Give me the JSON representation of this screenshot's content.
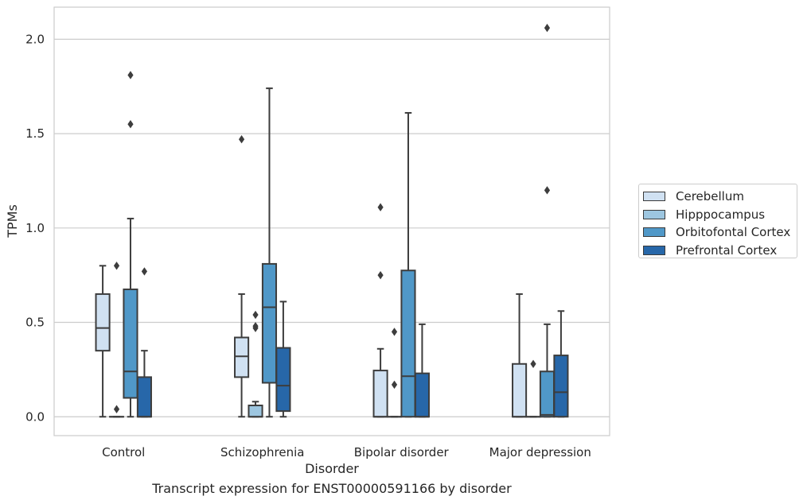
{
  "chart_data": {
    "type": "boxplot",
    "xlabel": "Disorder",
    "ylabel": "TPMs",
    "caption": "Transcript expression for ENST00000591166 by disorder",
    "ylim": [
      -0.1,
      2.17
    ],
    "yticks": [
      "0.0",
      "0.5",
      "1.0",
      "1.5",
      "2.0"
    ],
    "ytick_values": [
      0.0,
      0.5,
      1.0,
      1.5,
      2.0
    ],
    "categories": [
      "Control",
      "Schizophrenia",
      "Bipolar disorder",
      "Major depression"
    ],
    "grid": "horizontal",
    "legend_position": "right",
    "series": [
      {
        "name": "Cerebellum",
        "color": "#d0e1f2",
        "boxes": [
          {
            "whislo": 0.0,
            "q1": 0.35,
            "med": 0.47,
            "q3": 0.65,
            "whishi": 0.8,
            "fliers": []
          },
          {
            "whislo": 0.0,
            "q1": 0.21,
            "med": 0.32,
            "q3": 0.42,
            "whishi": 0.65,
            "fliers": [
              1.47
            ]
          },
          {
            "whislo": 0.0,
            "q1": 0.0,
            "med": 0.0,
            "q3": 0.245,
            "whishi": 0.36,
            "fliers": [
              0.75,
              1.11
            ]
          },
          {
            "whislo": 0.0,
            "q1": 0.0,
            "med": 0.0,
            "q3": 0.28,
            "whishi": 0.65,
            "fliers": []
          }
        ]
      },
      {
        "name": "Hipppocampus",
        "color": "#9dc6e0",
        "boxes": [
          {
            "whislo": 0.0,
            "q1": 0.0,
            "med": 0.0,
            "q3": 0.0,
            "whishi": 0.0,
            "fliers": [
              0.04,
              0.8
            ]
          },
          {
            "whislo": 0.0,
            "q1": 0.0,
            "med": 0.0,
            "q3": 0.06,
            "whishi": 0.08,
            "fliers": [
              0.47,
              0.48,
              0.54
            ]
          },
          {
            "whislo": 0.0,
            "q1": 0.0,
            "med": 0.0,
            "q3": 0.0,
            "whishi": 0.0,
            "fliers": [
              0.17,
              0.45
            ]
          },
          {
            "whislo": 0.0,
            "q1": 0.0,
            "med": 0.0,
            "q3": 0.0,
            "whishi": 0.0,
            "fliers": [
              0.28
            ]
          }
        ]
      },
      {
        "name": "Orbitofontal Cortex",
        "color": "#5098c8",
        "boxes": [
          {
            "whislo": 0.0,
            "q1": 0.1,
            "med": 0.24,
            "q3": 0.675,
            "whishi": 1.05,
            "fliers": [
              1.55,
              1.81
            ]
          },
          {
            "whislo": 0.0,
            "q1": 0.18,
            "med": 0.58,
            "q3": 0.81,
            "whishi": 1.74,
            "fliers": []
          },
          {
            "whislo": 0.0,
            "q1": 0.0,
            "med": 0.215,
            "q3": 0.775,
            "whishi": 1.61,
            "fliers": []
          },
          {
            "whislo": 0.0,
            "q1": 0.0,
            "med": 0.01,
            "q3": 0.24,
            "whishi": 0.49,
            "fliers": [
              1.2,
              2.06
            ]
          }
        ]
      },
      {
        "name": "Prefrontal Cortex",
        "color": "#2767a9",
        "boxes": [
          {
            "whislo": 0.0,
            "q1": 0.0,
            "med": 0.0,
            "q3": 0.21,
            "whishi": 0.35,
            "fliers": [
              0.77
            ]
          },
          {
            "whislo": 0.0,
            "q1": 0.03,
            "med": 0.165,
            "q3": 0.365,
            "whishi": 0.61,
            "fliers": []
          },
          {
            "whislo": 0.0,
            "q1": 0.0,
            "med": 0.0,
            "q3": 0.23,
            "whishi": 0.49,
            "fliers": []
          },
          {
            "whislo": 0.0,
            "q1": 0.0,
            "med": 0.13,
            "q3": 0.325,
            "whishi": 0.56,
            "fliers": []
          }
        ]
      }
    ]
  }
}
